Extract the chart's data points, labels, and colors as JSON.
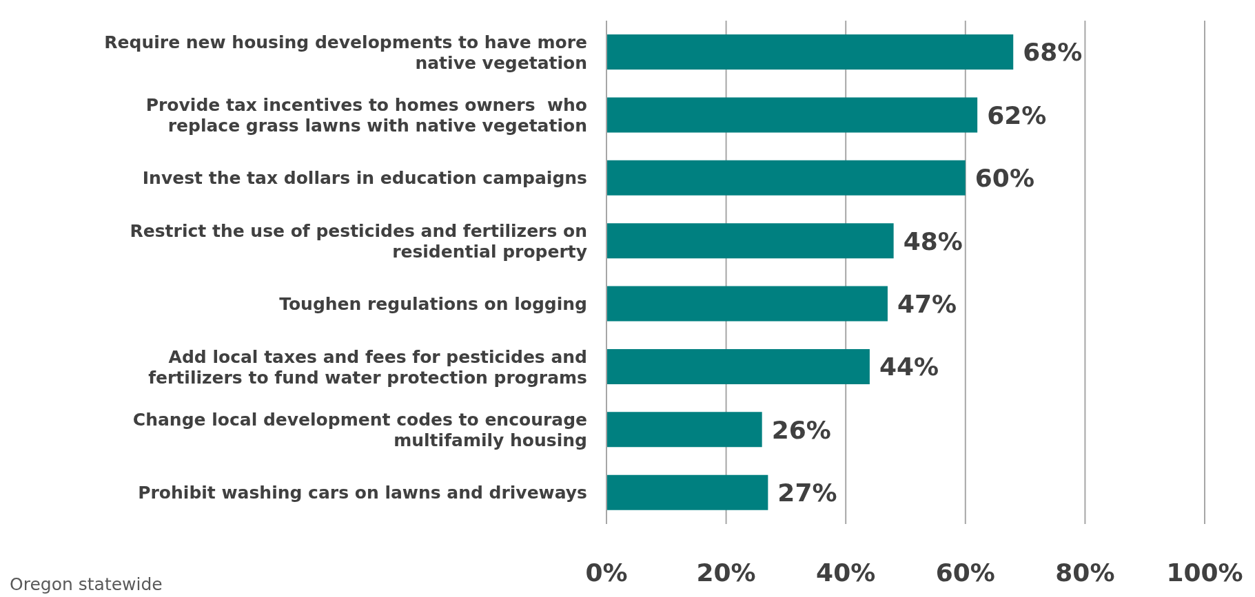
{
  "chart_data": {
    "type": "bar",
    "orientation": "horizontal",
    "categories": [
      "Require new housing developments to have more native vegetation",
      "Provide tax incentives to homes owners  who replace grass lawns with native vegetation",
      "Invest the tax dollars in education campaigns",
      "Restrict the use of pesticides and fertilizers on residential property",
      "Toughen regulations on logging",
      "Add local taxes and fees for pesticides and fertilizers to fund water protection programs",
      "Change local development codes to encourage multifamily housing",
      "Prohibit washing cars on lawns and driveways"
    ],
    "values": [
      68,
      62,
      60,
      48,
      47,
      44,
      26,
      27
    ],
    "color": "#008080",
    "xlim": [
      0,
      100
    ],
    "xticks": [
      {
        "value": 0,
        "label": "0%"
      },
      {
        "value": 20,
        "label": "20%"
      },
      {
        "value": 40,
        "label": "40%"
      },
      {
        "value": 60,
        "label": "60%"
      },
      {
        "value": 80,
        "label": "80%"
      },
      {
        "value": 100,
        "label": "100%"
      }
    ],
    "value_labels": [
      "68%",
      "62%",
      "60%",
      "48%",
      "47%",
      "44%",
      "26%",
      "27%"
    ],
    "grid": "x",
    "annotations": [
      "Oregon statewide"
    ]
  }
}
